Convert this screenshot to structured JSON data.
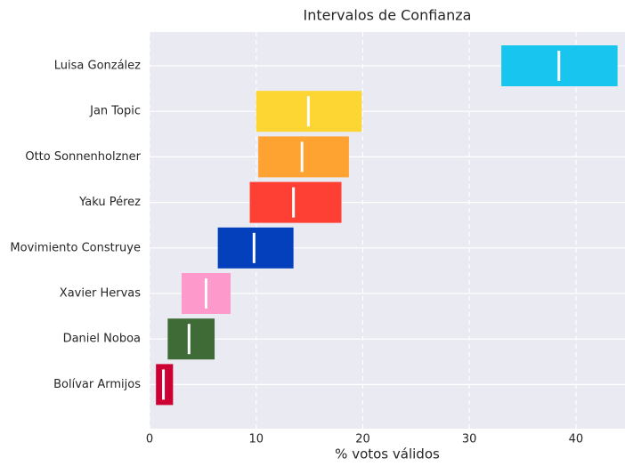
{
  "chart_data": {
    "type": "interval",
    "title": "Intervalos de Confianza",
    "x_label": "% votos válidos",
    "categories": [
      "Luisa González",
      "Jan Topic",
      "Otto Sonnenholzner",
      "Yaku Pérez",
      "Movimiento Construye",
      "Xavier Hervas",
      "Daniel Noboa",
      "Bolívar Armijos"
    ],
    "low": [
      33.0,
      10.0,
      10.2,
      9.4,
      6.4,
      3.0,
      1.7,
      0.6
    ],
    "high": [
      43.9,
      19.9,
      18.7,
      18.0,
      13.5,
      7.6,
      6.1,
      2.2
    ],
    "estimate": [
      38.4,
      14.9,
      14.3,
      13.5,
      9.8,
      5.3,
      3.7,
      1.3
    ],
    "colors": [
      "#17c5ef",
      "#fed633",
      "#fea232",
      "#fe3f33",
      "#0440bb",
      "#fe99cc",
      "#3f6b37",
      "#cc0033"
    ],
    "estimate_color": "#ffffff",
    "xlim": [
      0,
      44.6
    ],
    "xticks": [
      0,
      10,
      20,
      30,
      40
    ],
    "grid": true
  }
}
